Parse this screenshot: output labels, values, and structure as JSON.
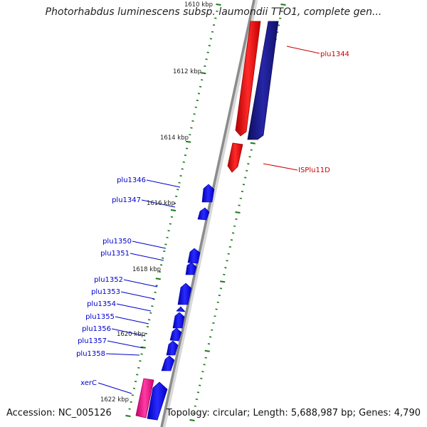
{
  "header": {
    "title": "Photorhabdus luminescens subsp. laumondii TTO1, complete gen..."
  },
  "footer": {
    "accession": "Accession: NC_005126",
    "topology": "Topology: circular; Length: 5,688,987 bp; Genes: 4,790"
  },
  "colors": {
    "backbone": "#8c8c8c",
    "tick": "#1a7a1a",
    "gene_red": "#ff1a1a",
    "gene_navy": "#1a1a8c",
    "gene_blue": "#1a1aff",
    "gene_pink": "#ff1493",
    "label_red": "#cc0000",
    "label_blue": "#0000cc"
  },
  "ruler": {
    "unit": "kbp",
    "labels": [
      "1610 kbp",
      "1612 kbp",
      "1614 kbp",
      "1616 kbp",
      "1618 kbp",
      "1620 kbp",
      "1622 kbp"
    ]
  },
  "features": [
    {
      "name": "plu1344",
      "color": "red",
      "track": "outer"
    },
    {
      "name": "ISPlu11D",
      "color": "red",
      "track": "outer"
    },
    {
      "name": "plu1346",
      "color": "blue",
      "track": "inner"
    },
    {
      "name": "plu1347",
      "color": "blue",
      "track": "inner"
    },
    {
      "name": "plu1350",
      "color": "blue",
      "track": "inner"
    },
    {
      "name": "plu1351",
      "color": "blue",
      "track": "inner"
    },
    {
      "name": "plu1352",
      "color": "blue",
      "track": "inner"
    },
    {
      "name": "plu1353",
      "color": "blue",
      "track": "inner"
    },
    {
      "name": "plu1354",
      "color": "blue",
      "track": "inner"
    },
    {
      "name": "plu1355",
      "color": "blue",
      "track": "inner"
    },
    {
      "name": "plu1356",
      "color": "blue",
      "track": "inner"
    },
    {
      "name": "plu1357",
      "color": "blue",
      "track": "inner"
    },
    {
      "name": "plu1358",
      "color": "blue",
      "track": "inner"
    },
    {
      "name": "xerC",
      "color": "pink",
      "track": "inner"
    }
  ]
}
